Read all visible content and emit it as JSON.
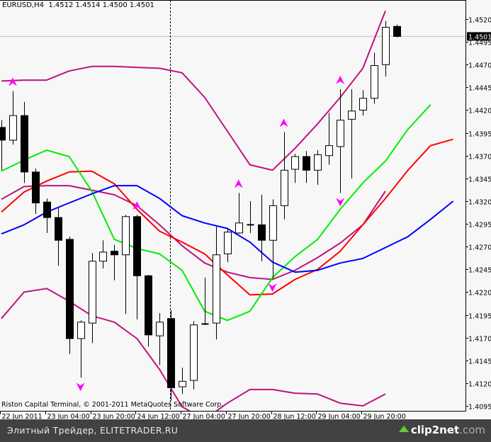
{
  "header": {
    "symbol_timeframe": "EURUSD,H4",
    "ohlc_text": "1.4512 1.4514 1.4500 1.4501"
  },
  "copyright": "Riston Capital Terminal, © 2001-2011 MetaQuotes Software Corp.",
  "footer": {
    "site": "Элитный Трейдер, ELITETRADER.RU",
    "brand_main": "clip2net",
    "brand_domain": ".com",
    "brand_icon": "up-arrow-icon"
  },
  "colors": {
    "background": "#f7f7f7",
    "bull_body": "#ffffff",
    "bear_body": "#000000",
    "bands": "#c0127f",
    "red_line": "#ff0000",
    "green_line": "#00ee00",
    "blue_line": "#0000ff",
    "fractal": "#ff00ff",
    "price_line": "#c0c0c0"
  },
  "chart_data": {
    "type": "candlestick",
    "symbol": "EURUSD",
    "timeframe": "H4",
    "current_price": "1.4501",
    "ylim": [
      1.4085,
      1.454
    ],
    "y_ticks": [
      "1.4520",
      "1.4495",
      "1.4470",
      "1.4445",
      "1.4420",
      "1.4395",
      "1.4370",
      "1.4345",
      "1.4320",
      "1.4295",
      "1.4270",
      "1.4245",
      "1.4220",
      "1.4195",
      "1.4170",
      "1.4145",
      "1.4120",
      "1.4095"
    ],
    "x_ticks": [
      {
        "bar": 0,
        "label": "22 Jun 2011"
      },
      {
        "bar": 4,
        "label": "23 Jun 04:00"
      },
      {
        "bar": 8,
        "label": "23 Jun 20:00"
      },
      {
        "bar": 12,
        "label": "24 Jun 12:00"
      },
      {
        "bar": 16,
        "label": "27 Jun 04:00"
      },
      {
        "bar": 20,
        "label": "27 Jun 20:00"
      },
      {
        "bar": 24,
        "label": "28 Jun 12:00"
      },
      {
        "bar": 28,
        "label": "29 Jun 04:00"
      },
      {
        "bar": 32,
        "label": "29 Jun 20:00"
      }
    ],
    "ohlc": [
      [
        1.4401,
        1.4409,
        1.4354,
        1.4387
      ],
      [
        1.4387,
        1.4441,
        1.4382,
        1.4414
      ],
      [
        1.4414,
        1.4429,
        1.434,
        1.4352
      ],
      [
        1.4352,
        1.4356,
        1.4306,
        1.4318
      ],
      [
        1.4319,
        1.4323,
        1.4285,
        1.4302
      ],
      [
        1.4302,
        1.4313,
        1.4249,
        1.4277
      ],
      [
        1.4278,
        1.4281,
        1.4152,
        1.4169
      ],
      [
        1.4169,
        1.4189,
        1.4126,
        1.4187
      ],
      [
        1.4186,
        1.4263,
        1.4164,
        1.4254
      ],
      [
        1.4254,
        1.4277,
        1.4246,
        1.4264
      ],
      [
        1.4265,
        1.4272,
        1.4233,
        1.4261
      ],
      [
        1.4261,
        1.4305,
        1.4196,
        1.4303
      ],
      [
        1.4303,
        1.4305,
        1.419,
        1.4238
      ],
      [
        1.4238,
        1.4239,
        1.416,
        1.4173
      ],
      [
        1.4172,
        1.4197,
        1.414,
        1.4187
      ],
      [
        1.4191,
        1.42,
        1.4101,
        1.4115
      ],
      [
        1.4116,
        1.4137,
        1.4108,
        1.4122
      ],
      [
        1.4123,
        1.4188,
        1.4113,
        1.4184
      ],
      [
        1.4185,
        1.4236,
        1.4184,
        1.4185
      ],
      [
        1.4186,
        1.4292,
        1.4168,
        1.4261
      ],
      [
        1.4262,
        1.4289,
        1.4253,
        1.4286
      ],
      [
        1.4285,
        1.4329,
        1.4284,
        1.4296
      ],
      [
        1.4294,
        1.432,
        1.4285,
        1.4294
      ],
      [
        1.4294,
        1.4327,
        1.4254,
        1.4277
      ],
      [
        1.4277,
        1.4322,
        1.4235,
        1.4315
      ],
      [
        1.4315,
        1.4396,
        1.43,
        1.4354
      ],
      [
        1.4355,
        1.4372,
        1.434,
        1.4369
      ],
      [
        1.4369,
        1.4375,
        1.434,
        1.4354
      ],
      [
        1.4354,
        1.4376,
        1.4338,
        1.4371
      ],
      [
        1.437,
        1.4417,
        1.436,
        1.4381
      ],
      [
        1.438,
        1.4443,
        1.4329,
        1.4409
      ],
      [
        1.441,
        1.4443,
        1.4345,
        1.4419
      ],
      [
        1.442,
        1.4442,
        1.4414,
        1.4433
      ],
      [
        1.4433,
        1.4483,
        1.4427,
        1.4469
      ],
      [
        1.447,
        1.4518,
        1.4457,
        1.4511
      ],
      [
        1.4512,
        1.4514,
        1.45,
        1.4501
      ]
    ],
    "line_sample_step_bars": 2,
    "lines": [
      {
        "key": "upper_band",
        "color": "#c0127f",
        "values": [
          1.4452,
          1.4453,
          1.4453,
          1.4463,
          1.4468,
          1.4468,
          1.4467,
          1.4466,
          1.4461,
          1.4434,
          1.4397,
          1.436,
          1.4354,
          1.4378,
          1.4405,
          1.4434,
          1.4466,
          1.4529
        ]
      },
      {
        "key": "middle_band",
        "color": "#c0127f",
        "values": [
          1.4322,
          1.4336,
          1.4337,
          1.4337,
          1.4332,
          1.4327,
          1.4315,
          1.4294,
          1.4271,
          1.4252,
          1.4242,
          1.4236,
          1.4234,
          1.4244,
          1.4258,
          1.4274,
          1.4294,
          1.4331
        ]
      },
      {
        "key": "lower_band",
        "color": "#c0127f",
        "values": [
          1.4191,
          1.422,
          1.4224,
          1.421,
          1.4194,
          1.4187,
          1.4169,
          1.4135,
          1.4094,
          1.408,
          1.4098,
          1.4113,
          1.4113,
          1.4109,
          1.4108,
          1.4098,
          1.4095,
          1.4108
        ]
      },
      {
        "key": "red",
        "color": "#ff0000",
        "values": [
          1.4308,
          1.433,
          1.4342,
          1.4352,
          1.4353,
          1.4339,
          1.4311,
          1.4287,
          1.4275,
          1.4262,
          1.4239,
          1.4217,
          1.4218,
          1.4234,
          1.4245,
          1.4265,
          1.4294,
          1.4323,
          1.4354,
          1.4381,
          1.4388
        ]
      },
      {
        "key": "green",
        "color": "#00ee00",
        "values": [
          1.4353,
          1.4365,
          1.4376,
          1.4369,
          1.4331,
          1.4278,
          1.4268,
          1.4262,
          1.4244,
          1.4199,
          1.4189,
          1.4199,
          1.4236,
          1.4259,
          1.4278,
          1.4311,
          1.434,
          1.4364,
          1.4399,
          1.4426
        ]
      },
      {
        "key": "blue",
        "color": "#0000ff",
        "values": [
          1.4284,
          1.4294,
          1.4308,
          1.4318,
          1.4328,
          1.4337,
          1.4337,
          1.4323,
          1.4304,
          1.4296,
          1.429,
          1.4275,
          1.4253,
          1.4242,
          1.4244,
          1.4252,
          1.4257,
          1.4269,
          1.4281,
          1.43,
          1.432
        ]
      }
    ],
    "fractals": {
      "up": [
        1,
        12,
        21,
        25,
        30
      ],
      "down": [
        7,
        24,
        30
      ]
    },
    "vertical_marker_bar": 15,
    "grid": false
  }
}
